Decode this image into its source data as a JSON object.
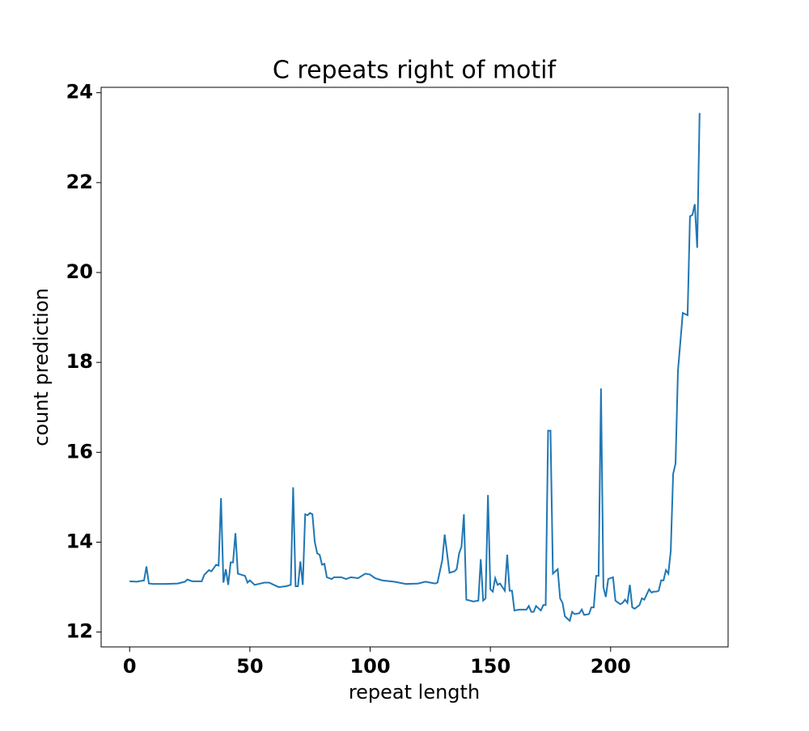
{
  "chart_data": {
    "type": "line",
    "title": "C repeats right of motif",
    "x_label": "repeat length",
    "y_label": "count prediction",
    "xlim": [
      -11.85,
      248.85
    ],
    "ylim": [
      11.67,
      24.12
    ],
    "xticks": [
      0,
      50,
      100,
      150,
      200
    ],
    "yticks": [
      12,
      14,
      16,
      18,
      20,
      22,
      24
    ],
    "x": [
      0,
      3,
      6,
      7,
      8,
      10,
      15,
      20,
      23,
      24,
      26,
      30,
      31,
      33,
      34,
      36,
      37,
      38,
      39,
      40,
      41,
      42,
      43,
      44,
      45,
      48,
      49,
      50,
      52,
      56,
      58,
      60,
      62,
      65,
      67,
      68,
      69,
      70,
      71,
      72,
      73,
      74,
      75,
      76,
      77,
      78,
      79,
      80,
      81,
      82,
      84,
      85,
      88,
      90,
      92,
      95,
      98,
      100,
      102,
      105,
      110,
      115,
      120,
      123,
      125,
      127,
      128,
      130,
      131,
      132,
      133,
      135,
      136,
      137,
      138,
      139,
      140,
      143,
      145,
      146,
      147,
      148,
      149,
      150,
      151,
      152,
      153,
      154,
      156,
      157,
      158,
      159,
      160,
      162,
      165,
      166,
      167,
      168,
      169,
      171,
      172,
      173,
      174,
      175,
      176,
      178,
      179,
      180,
      181,
      183,
      184,
      185,
      187,
      188,
      189,
      191,
      192,
      193,
      194,
      195,
      196,
      197,
      198,
      199,
      201,
      202,
      204,
      205,
      206,
      207,
      208,
      209,
      210,
      212,
      213,
      214,
      216,
      217,
      218,
      219,
      220,
      221,
      222,
      223,
      224,
      225,
      226,
      227,
      228,
      229,
      230,
      232,
      233,
      234,
      235,
      236,
      237
    ],
    "series": [
      {
        "color": "#1f77b4",
        "values": [
          13.13,
          13.12,
          13.15,
          13.46,
          13.08,
          13.07,
          13.07,
          13.08,
          13.12,
          13.17,
          13.13,
          13.13,
          13.27,
          13.38,
          13.35,
          13.5,
          13.48,
          14.98,
          13.1,
          13.4,
          13.05,
          13.55,
          13.55,
          14.2,
          13.3,
          13.25,
          13.1,
          13.15,
          13.05,
          13.1,
          13.1,
          13.05,
          13.0,
          13.02,
          13.05,
          15.22,
          13.02,
          13.02,
          13.57,
          13.05,
          14.62,
          14.6,
          14.65,
          14.62,
          14.0,
          13.75,
          13.72,
          13.5,
          13.52,
          13.22,
          13.18,
          13.22,
          13.22,
          13.18,
          13.22,
          13.2,
          13.3,
          13.28,
          13.2,
          13.15,
          13.12,
          13.07,
          13.08,
          13.12,
          13.1,
          13.08,
          13.1,
          13.6,
          14.17,
          13.75,
          13.32,
          13.35,
          13.4,
          13.75,
          13.9,
          14.62,
          12.72,
          12.68,
          12.7,
          13.62,
          12.7,
          12.75,
          15.05,
          12.95,
          12.9,
          13.2,
          13.05,
          13.08,
          12.92,
          13.72,
          12.92,
          12.92,
          12.48,
          12.5,
          12.5,
          12.58,
          12.45,
          12.45,
          12.58,
          12.48,
          12.6,
          12.6,
          16.48,
          16.48,
          13.3,
          13.4,
          12.75,
          12.65,
          12.35,
          12.25,
          12.45,
          12.4,
          12.42,
          12.5,
          12.38,
          12.4,
          12.55,
          12.55,
          13.25,
          13.25,
          17.42,
          13.0,
          12.78,
          13.18,
          13.22,
          12.7,
          12.62,
          12.65,
          12.72,
          12.65,
          13.05,
          12.55,
          12.52,
          12.6,
          12.75,
          12.72,
          12.95,
          12.88,
          12.9,
          12.9,
          12.92,
          13.15,
          13.15,
          13.38,
          13.3,
          13.8,
          15.52,
          15.75,
          17.82,
          18.45,
          19.1,
          19.05,
          21.25,
          21.28,
          21.52,
          20.55,
          23.55
        ]
      }
    ]
  }
}
